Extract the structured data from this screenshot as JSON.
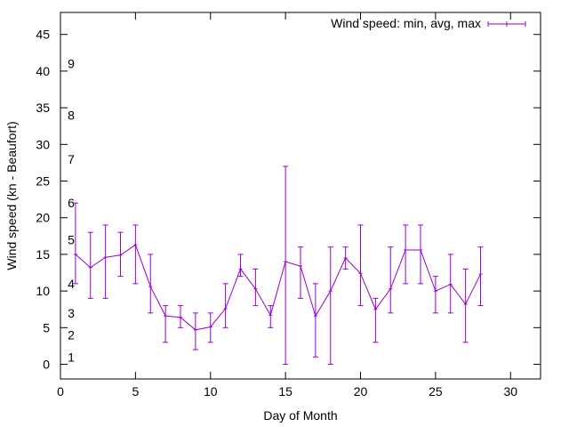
{
  "chart_data": {
    "type": "line",
    "xlabel": "Day of Month",
    "ylabel": "Wind speed (kn - Beaufort)",
    "xlim": [
      0,
      32
    ],
    "ylim": [
      -2,
      48
    ],
    "x_ticks": [
      0,
      5,
      10,
      15,
      20,
      25,
      30
    ],
    "y_ticks": [
      0,
      5,
      10,
      15,
      20,
      25,
      30,
      35,
      40,
      45
    ],
    "grid": false,
    "legend_position": "top-right",
    "beaufort_labels": [
      {
        "label": "1",
        "y": 1
      },
      {
        "label": "2",
        "y": 4
      },
      {
        "label": "3",
        "y": 7
      },
      {
        "label": "4",
        "y": 11
      },
      {
        "label": "5",
        "y": 17
      },
      {
        "label": "6",
        "y": 22
      },
      {
        "label": "7",
        "y": 28
      },
      {
        "label": "8",
        "y": 34
      },
      {
        "label": "9",
        "y": 41
      }
    ],
    "series": [
      {
        "name": "Wind speed: min, avg, max",
        "color": "#9400d3",
        "points": [
          {
            "x": 1,
            "avg": 15.0,
            "min": 11,
            "max": 22
          },
          {
            "x": 2,
            "avg": 13.2,
            "min": 9,
            "max": 18
          },
          {
            "x": 3,
            "avg": 14.6,
            "min": 9,
            "max": 19
          },
          {
            "x": 4,
            "avg": 14.9,
            "min": 12,
            "max": 18
          },
          {
            "x": 5,
            "avg": 16.3,
            "min": 11,
            "max": 19
          },
          {
            "x": 6,
            "avg": 10.6,
            "min": 7,
            "max": 15
          },
          {
            "x": 7,
            "avg": 6.6,
            "min": 3,
            "max": 8
          },
          {
            "x": 8,
            "avg": 6.4,
            "min": 5,
            "max": 8
          },
          {
            "x": 9,
            "avg": 4.7,
            "min": 2,
            "max": 7
          },
          {
            "x": 10,
            "avg": 5.1,
            "min": 3,
            "max": 7
          },
          {
            "x": 11,
            "avg": 7.6,
            "min": 5,
            "max": 11
          },
          {
            "x": 12,
            "avg": 13.0,
            "min": 12,
            "max": 15
          },
          {
            "x": 13,
            "avg": 10.3,
            "min": 8,
            "max": 13
          },
          {
            "x": 14,
            "avg": 6.7,
            "min": 5,
            "max": 8
          },
          {
            "x": 15,
            "avg": 14.0,
            "min": 0,
            "max": 27
          },
          {
            "x": 16,
            "avg": 13.4,
            "min": 9,
            "max": 16
          },
          {
            "x": 17,
            "avg": 6.6,
            "min": 1,
            "max": 11
          },
          {
            "x": 18,
            "avg": 10.0,
            "min": 0,
            "max": 16
          },
          {
            "x": 19,
            "avg": 14.5,
            "min": 13,
            "max": 16
          },
          {
            "x": 20,
            "avg": 12.4,
            "min": 8,
            "max": 19
          },
          {
            "x": 21,
            "avg": 7.5,
            "min": 3,
            "max": 9
          },
          {
            "x": 22,
            "avg": 10.3,
            "min": 7,
            "max": 16
          },
          {
            "x": 23,
            "avg": 15.6,
            "min": 11,
            "max": 19
          },
          {
            "x": 24,
            "avg": 15.6,
            "min": 11,
            "max": 19
          },
          {
            "x": 25,
            "avg": 10.0,
            "min": 7,
            "max": 12
          },
          {
            "x": 26,
            "avg": 10.9,
            "min": 7,
            "max": 15
          },
          {
            "x": 27,
            "avg": 8.2,
            "min": 3,
            "max": 13
          },
          {
            "x": 28,
            "avg": 12.3,
            "min": 8,
            "max": 16
          }
        ]
      }
    ]
  }
}
